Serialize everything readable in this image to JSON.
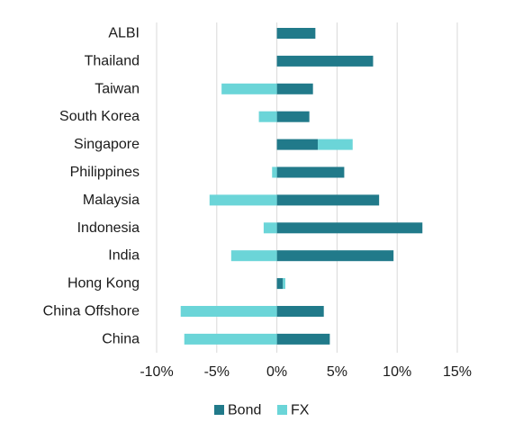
{
  "chart_data": {
    "type": "bar",
    "orientation": "horizontal",
    "stacked": true,
    "categories": [
      "ALBI",
      "Thailand",
      "Taiwan",
      "South Korea",
      "Singapore",
      "Philippines",
      "Malaysia",
      "Indonesia",
      "India",
      "Hong Kong",
      "China Offshore",
      "China"
    ],
    "series": [
      {
        "name": "Bond",
        "color": "#217A8A",
        "values": [
          3.2,
          8.0,
          3.0,
          2.7,
          3.4,
          5.6,
          8.5,
          12.1,
          9.7,
          0.5,
          3.9,
          4.4
        ]
      },
      {
        "name": "FX",
        "color": "#6BD5D8",
        "values": [
          0.0,
          0.0,
          -4.6,
          -1.5,
          2.9,
          -0.4,
          -5.6,
          -1.1,
          -3.8,
          0.2,
          -8.0,
          -7.7
        ]
      }
    ],
    "x_ticks": [
      "-10%",
      "-5%",
      "0%",
      "5%",
      "10%",
      "15%"
    ],
    "xlim": [
      -10,
      15
    ],
    "grid": "vertical",
    "legend_position": "bottom",
    "title": "",
    "xlabel": "",
    "ylabel": ""
  }
}
